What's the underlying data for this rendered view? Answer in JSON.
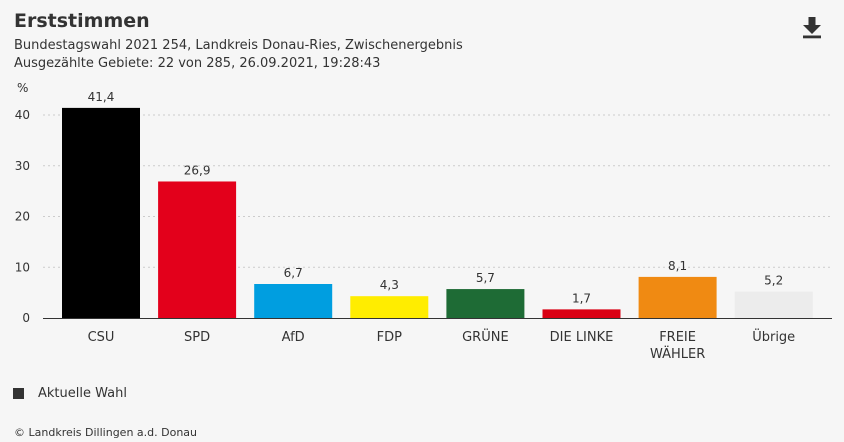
{
  "header": {
    "title": "Erststimmen",
    "subtitle_line1": "Bundestagswahl 2021 254, Landkreis Donau-Ries, Zwischenergebnis",
    "subtitle_line2": "Ausgezählte Gebiete: 22 von 285, 26.09.2021, 19:28:43"
  },
  "legend": {
    "label": "Aktuelle Wahl"
  },
  "footer": {
    "source": "© Landkreis Dillingen a.d. Donau"
  },
  "icons": {
    "download": "download-icon"
  },
  "chart_data": {
    "type": "bar",
    "ylabel": "%",
    "ylim": [
      0,
      40
    ],
    "yticks": [
      0,
      10,
      20,
      30,
      40
    ],
    "grid": true,
    "categories": [
      "CSU",
      "SPD",
      "AfD",
      "FDP",
      "GRÜNE",
      "DIE LINKE",
      "FREIE WÄHLER",
      "Übrige"
    ],
    "category_lines": [
      [
        "CSU"
      ],
      [
        "SPD"
      ],
      [
        "AfD"
      ],
      [
        "FDP"
      ],
      [
        "GRÜNE"
      ],
      [
        "DIE LINKE"
      ],
      [
        "FREIE",
        "WÄHLER"
      ],
      [
        "Übrige"
      ]
    ],
    "values": [
      41.4,
      26.9,
      6.7,
      4.3,
      5.7,
      1.7,
      8.1,
      5.2
    ],
    "value_labels": [
      "41,4",
      "26,9",
      "6,7",
      "4,3",
      "5,7",
      "1,7",
      "8,1",
      "5,2"
    ],
    "colors": [
      "#000000",
      "#e3001b",
      "#009ee0",
      "#ffed00",
      "#1e6b35",
      "#d90014",
      "#f08a12",
      "#ececec"
    ],
    "series": [
      {
        "name": "Aktuelle Wahl",
        "values": [
          41.4,
          26.9,
          6.7,
          4.3,
          5.7,
          1.7,
          8.1,
          5.2
        ]
      }
    ]
  }
}
